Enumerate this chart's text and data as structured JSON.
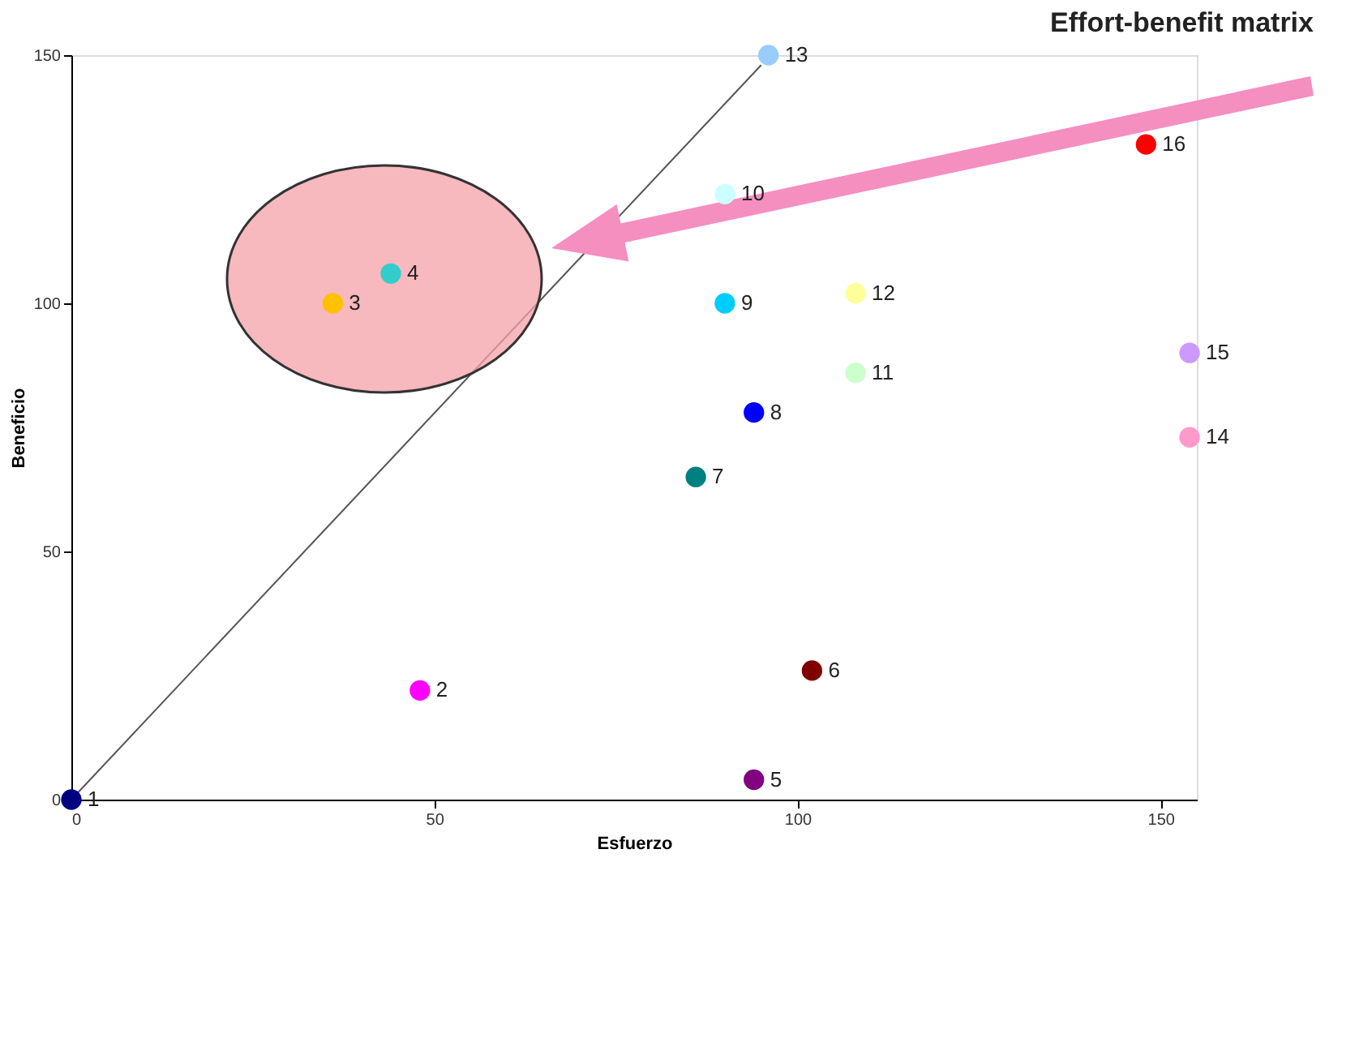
{
  "chart_data": {
    "type": "scatter",
    "title": "Effort-benefit matrix",
    "xlabel": "Esfuerzo",
    "ylabel": "Beneficio",
    "xlim": [
      0,
      155
    ],
    "ylim": [
      0,
      150
    ],
    "xticks": [
      0,
      50,
      100,
      150
    ],
    "yticks": [
      0,
      50,
      100,
      150
    ],
    "grid": false,
    "marker": "circle",
    "series": [
      {
        "name": "1",
        "color": "#000080",
        "x": [
          0
        ],
        "values": [
          0
        ]
      },
      {
        "name": "2",
        "color": "#ff00ff",
        "x": [
          48
        ],
        "values": [
          22
        ]
      },
      {
        "name": "3",
        "color": "#ffc000",
        "x": [
          36
        ],
        "values": [
          100
        ]
      },
      {
        "name": "4",
        "color": "#33cccc",
        "x": [
          44
        ],
        "values": [
          106
        ]
      },
      {
        "name": "5",
        "color": "#800080",
        "x": [
          94
        ],
        "values": [
          4
        ]
      },
      {
        "name": "6",
        "color": "#800000",
        "x": [
          102
        ],
        "values": [
          26
        ]
      },
      {
        "name": "7",
        "color": "#008080",
        "x": [
          86
        ],
        "values": [
          65
        ]
      },
      {
        "name": "8",
        "color": "#0000ff",
        "x": [
          94
        ],
        "values": [
          78
        ]
      },
      {
        "name": "9",
        "color": "#00ccff",
        "x": [
          90
        ],
        "values": [
          100
        ]
      },
      {
        "name": "10",
        "color": "#ccffff",
        "x": [
          90
        ],
        "values": [
          122
        ]
      },
      {
        "name": "11",
        "color": "#ccffcc",
        "x": [
          108
        ],
        "values": [
          86
        ]
      },
      {
        "name": "12",
        "color": "#ffff99",
        "x": [
          108
        ],
        "values": [
          102
        ]
      },
      {
        "name": "13",
        "color": "#99ccff",
        "x": [
          96
        ],
        "values": [
          150
        ]
      },
      {
        "name": "14",
        "color": "#ff99cc",
        "x": [
          154
        ],
        "values": [
          73
        ]
      },
      {
        "name": "15",
        "color": "#cc99ff",
        "x": [
          154
        ],
        "values": [
          90
        ]
      },
      {
        "name": "16",
        "color": "#ff0000",
        "x": [
          148
        ],
        "values": [
          132
        ]
      },
      {
        "type": "line",
        "color": "#555555",
        "marker": "none",
        "x": [
          0,
          95
        ],
        "values": [
          0,
          148
        ]
      }
    ]
  }
}
